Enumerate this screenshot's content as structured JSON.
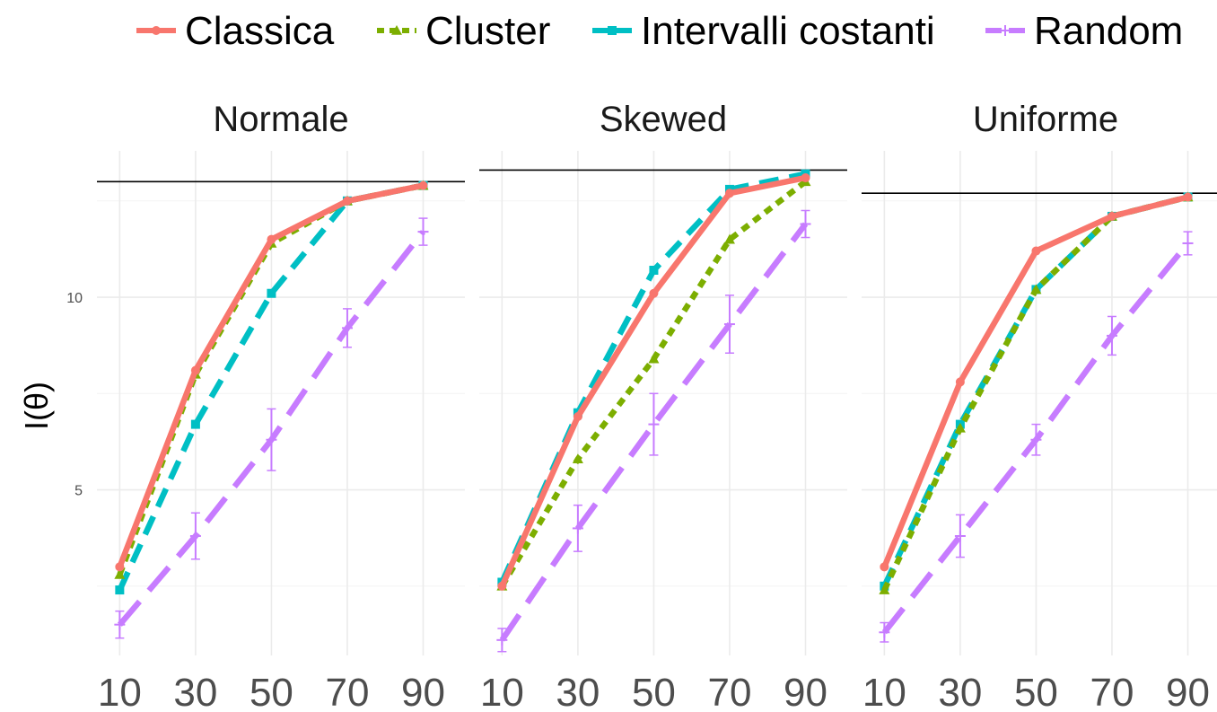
{
  "chart_data": {
    "type": "line",
    "ylabel": "I(θ)",
    "xlabel": "",
    "x": [
      10,
      30,
      50,
      70,
      90
    ],
    "x_ticks": [
      "10",
      "30",
      "50",
      "70",
      "90"
    ],
    "y_ticks": [
      {
        "value": 5,
        "label": "5"
      },
      {
        "value": 10,
        "label": "10"
      }
    ],
    "xlim": [
      4,
      101
    ],
    "ylim": [
      0.7,
      13.8
    ],
    "grid": true,
    "legend_position": "top",
    "legend": [
      {
        "name": "Classica",
        "color": "#F8766D",
        "dash": "solid",
        "marker": "circle"
      },
      {
        "name": "Cluster",
        "color": "#7CAE00",
        "dash": "dotted",
        "marker": "triangle"
      },
      {
        "name": "Intervalli costanti",
        "color": "#00BFC4",
        "dash": "dashed",
        "marker": "square"
      },
      {
        "name": "Random",
        "color": "#C77CFF",
        "dash": "longdash",
        "marker": "plus"
      }
    ],
    "panels": [
      {
        "title": "Normale",
        "reference_line": 13.0,
        "series": [
          {
            "name": "Classica",
            "values": [
              3.0,
              8.1,
              11.5,
              12.5,
              12.9
            ]
          },
          {
            "name": "Cluster",
            "values": [
              2.8,
              8.0,
              11.4,
              12.5,
              12.9
            ]
          },
          {
            "name": "Intervalli costanti",
            "values": [
              2.4,
              6.7,
              10.1,
              12.5,
              12.9
            ]
          },
          {
            "name": "Random",
            "values": [
              1.5,
              3.8,
              6.3,
              9.2,
              11.7
            ],
            "errors": [
              0.35,
              0.6,
              0.8,
              0.5,
              0.35
            ]
          }
        ]
      },
      {
        "title": "Skewed",
        "reference_line": 13.3,
        "series": [
          {
            "name": "Classica",
            "values": [
              2.5,
              6.9,
              10.1,
              12.7,
              13.1
            ]
          },
          {
            "name": "Cluster",
            "values": [
              2.5,
              5.8,
              8.4,
              11.5,
              13.0
            ]
          },
          {
            "name": "Intervalli costanti",
            "values": [
              2.6,
              7.0,
              10.7,
              12.8,
              13.2
            ]
          },
          {
            "name": "Random",
            "values": [
              1.1,
              4.0,
              6.7,
              9.3,
              11.9
            ],
            "errors": [
              0.3,
              0.6,
              0.8,
              0.75,
              0.35
            ]
          }
        ]
      },
      {
        "title": "Uniforme",
        "reference_line": 12.7,
        "series": [
          {
            "name": "Classica",
            "values": [
              3.0,
              7.8,
              11.2,
              12.1,
              12.6
            ]
          },
          {
            "name": "Cluster",
            "values": [
              2.4,
              6.6,
              10.2,
              12.1,
              12.6
            ]
          },
          {
            "name": "Intervalli costanti",
            "values": [
              2.5,
              6.7,
              10.2,
              12.1,
              12.6
            ]
          },
          {
            "name": "Random",
            "values": [
              1.3,
              3.8,
              6.3,
              9.0,
              11.4
            ],
            "errors": [
              0.25,
              0.55,
              0.4,
              0.5,
              0.3
            ]
          }
        ]
      }
    ]
  }
}
